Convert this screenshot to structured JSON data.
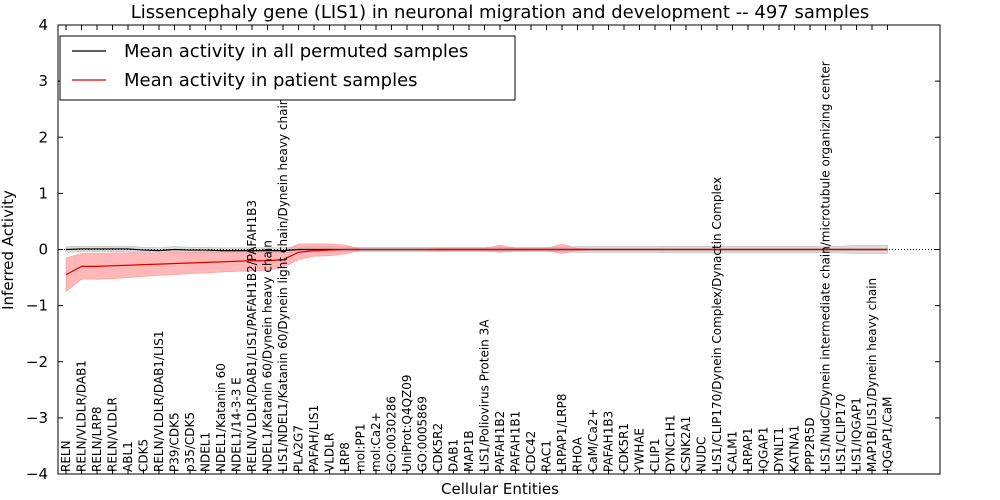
{
  "chart_data": {
    "type": "line",
    "title": "Lissencephaly gene (LIS1) in neuronal migration and development -- 497 samples",
    "xlabel": "Cellular Entities",
    "ylabel": "Inferred Activity",
    "ylim": [
      -4,
      4
    ],
    "yticks": [
      -4,
      -3,
      -2,
      -1,
      0,
      1,
      2,
      3,
      4
    ],
    "ytick_labels": [
      "−4",
      "−3",
      "−2",
      "−1",
      "0",
      "1",
      "2",
      "3",
      "4"
    ],
    "grid": false,
    "legend_position": "top-left",
    "categories": [
      "RELN",
      "RELN/VLDLR/DAB1",
      "RELN/LRP8",
      "RELN/VLDLR",
      "ABL1",
      "CDK5",
      "RELN/VLDLR/DAB1/LIS1",
      "P39/CDK5",
      "p35/CDK5",
      "NDEL1",
      "NDEL1/Katanin 60",
      "NDEL1/14-3-3 E",
      "RELN/VLDLR/DAB1/LIS1/PAFAH1B2/PAFAH1B3",
      "NDEL1/Katanin 60/Dynein heavy chain",
      "LIS1/NDEL1/Katanin 60/Dynein light chain/Dynein heavy chain",
      "PLA2G7",
      "PAFAH/LIS1",
      "VLDLR",
      "LRP8",
      "mol:PP1",
      "mol:Ca2+",
      "GO:0030286",
      "UniProt:Q4QZ09",
      "GO:0005869",
      "CDK5R2",
      "DAB1",
      "MAP1B",
      "LIS1/Poliovirus Protein 3A",
      "PAFAH1B2",
      "PAFAH1B1",
      "CDC42",
      "RAC1",
      "LRPAP1/LRP8",
      "RHOA",
      "CaM/Ca2+",
      "PAFAH1B3",
      "CDK5R1",
      "YWHAE",
      "CLIP1",
      "DYNC1H1",
      "CSNK2A1",
      "NUDC",
      "LIS1/CLIP170/Dynein Complex/Dynactin Complex",
      "CALM1",
      "LRPAP1",
      "IQGAP1",
      "DYNLT1",
      "KATNA1",
      "PPP2R5D",
      "LIS1/NudC/Dynein intermediate chain/microtubule organizing center",
      "LIS1/CLIP170",
      "LIS1/IQGAP1",
      "MAP1B/LIS1/Dynein heavy chain",
      "IQGAP1/CaM"
    ],
    "series": [
      {
        "name": "Mean activity in all permuted samples",
        "color": "#000000",
        "band_color": "#bbbbbb",
        "values": [
          0.0,
          0.01,
          0.01,
          0.01,
          0.01,
          -0.01,
          -0.02,
          0.0,
          -0.01,
          -0.01,
          -0.02,
          -0.02,
          -0.02,
          -0.02,
          -0.02,
          0.0,
          0.0,
          0.0,
          0.0,
          0.0,
          0.0,
          0.0,
          0.0,
          0.0,
          0.0,
          0.0,
          0.0,
          0.0,
          0.0,
          0.0,
          0.0,
          0.0,
          0.0,
          0.0,
          0.0,
          0.0,
          0.0,
          0.0,
          0.0,
          0.0,
          0.0,
          0.0,
          0.0,
          0.0,
          0.0,
          0.0,
          0.0,
          0.0,
          0.0,
          0.0,
          0.0,
          0.0,
          0.0,
          0.0
        ],
        "lower": [
          -0.05,
          -0.04,
          -0.04,
          -0.04,
          -0.04,
          -0.06,
          -0.06,
          -0.05,
          -0.06,
          -0.06,
          -0.06,
          -0.06,
          -0.06,
          -0.06,
          -0.06,
          -0.05,
          -0.05,
          -0.05,
          -0.04,
          -0.04,
          -0.04,
          -0.04,
          -0.04,
          -0.04,
          -0.04,
          -0.04,
          -0.04,
          -0.04,
          -0.04,
          -0.04,
          -0.04,
          -0.04,
          -0.04,
          -0.05,
          -0.05,
          -0.05,
          -0.05,
          -0.05,
          -0.05,
          -0.06,
          -0.06,
          -0.06,
          -0.06,
          -0.06,
          -0.06,
          -0.06,
          -0.06,
          -0.06,
          -0.06,
          -0.06,
          -0.06,
          -0.07,
          -0.07,
          -0.07
        ],
        "upper": [
          0.05,
          0.06,
          0.06,
          0.06,
          0.06,
          0.04,
          0.03,
          0.05,
          0.04,
          0.04,
          0.03,
          0.03,
          0.03,
          0.03,
          0.03,
          0.05,
          0.05,
          0.05,
          0.04,
          0.04,
          0.04,
          0.04,
          0.04,
          0.04,
          0.04,
          0.04,
          0.04,
          0.04,
          0.04,
          0.04,
          0.04,
          0.04,
          0.04,
          0.05,
          0.05,
          0.05,
          0.05,
          0.05,
          0.05,
          0.06,
          0.06,
          0.06,
          0.06,
          0.06,
          0.06,
          0.06,
          0.06,
          0.06,
          0.06,
          0.06,
          0.06,
          0.07,
          0.07,
          0.07
        ]
      },
      {
        "name": "Mean activity in patient samples",
        "color": "#dd0000",
        "band_color": "#ff9999",
        "values": [
          -0.45,
          -0.3,
          -0.3,
          -0.29,
          -0.28,
          -0.27,
          -0.26,
          -0.25,
          -0.24,
          -0.23,
          -0.22,
          -0.21,
          -0.2,
          -0.2,
          -0.18,
          -0.05,
          -0.02,
          -0.01,
          0.0,
          0.0,
          0.0,
          0.0,
          0.0,
          0.0,
          0.0,
          0.0,
          0.0,
          0.0,
          0.0,
          0.0,
          0.0,
          0.0,
          0.0,
          0.0,
          0.0,
          0.0,
          0.0,
          0.0,
          0.0,
          0.0,
          0.0,
          0.0,
          0.0,
          0.0,
          0.0,
          0.0,
          0.0,
          0.0,
          0.0,
          0.0,
          0.0,
          0.0,
          0.0,
          0.0
        ],
        "lower": [
          -0.75,
          -0.53,
          -0.53,
          -0.52,
          -0.5,
          -0.48,
          -0.46,
          -0.45,
          -0.43,
          -0.42,
          -0.4,
          -0.39,
          -0.38,
          -0.37,
          -0.32,
          -0.18,
          -0.12,
          -0.11,
          -0.08,
          -0.01,
          -0.01,
          -0.01,
          -0.01,
          -0.01,
          -0.02,
          -0.02,
          -0.02,
          -0.02,
          -0.05,
          -0.02,
          -0.02,
          -0.02,
          -0.07,
          -0.02,
          -0.01,
          -0.01,
          -0.01,
          -0.01,
          -0.01,
          -0.01,
          -0.01,
          -0.01,
          -0.01,
          -0.01,
          -0.01,
          -0.01,
          -0.01,
          -0.01,
          -0.01,
          -0.01,
          -0.01,
          -0.01,
          -0.01,
          -0.01
        ],
        "upper": [
          -0.15,
          -0.07,
          -0.07,
          -0.06,
          -0.06,
          -0.06,
          -0.06,
          -0.05,
          -0.05,
          -0.04,
          -0.04,
          -0.03,
          -0.02,
          -0.02,
          -0.03,
          0.1,
          0.1,
          0.1,
          0.08,
          0.01,
          0.01,
          0.01,
          0.01,
          0.01,
          0.02,
          0.02,
          0.02,
          0.02,
          0.08,
          0.02,
          0.02,
          0.02,
          0.1,
          0.02,
          0.01,
          0.01,
          0.01,
          0.01,
          0.01,
          0.01,
          0.01,
          0.01,
          0.01,
          0.01,
          0.01,
          0.01,
          0.01,
          0.01,
          0.01,
          0.01,
          0.01,
          0.01,
          0.01,
          0.01
        ]
      }
    ]
  }
}
